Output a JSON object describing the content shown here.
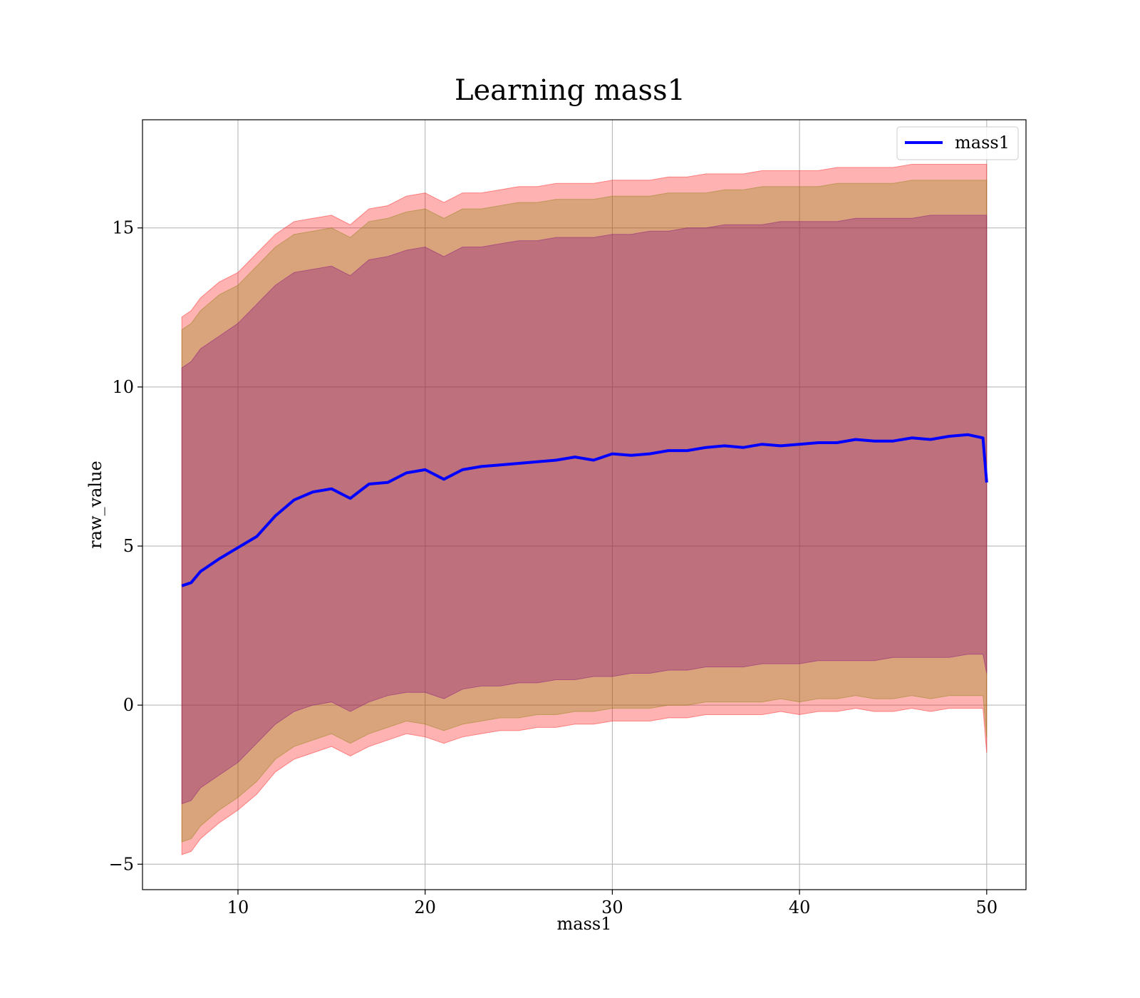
{
  "chart_data": {
    "type": "line",
    "title": "Learning mass1",
    "xlabel": "mass1",
    "ylabel": "raw_value",
    "xlim": [
      4.9,
      52.1
    ],
    "ylim": [
      -5.8,
      18.4
    ],
    "xticks": [
      10,
      20,
      30,
      40,
      50
    ],
    "xtick_labels": [
      "10",
      "20",
      "30",
      "40",
      "50"
    ],
    "yticks": [
      -5,
      0,
      5,
      10,
      15
    ],
    "ytick_labels": [
      "−5",
      "0",
      "5",
      "10",
      "15"
    ],
    "grid": true,
    "legend_position": "top-right",
    "series": [
      {
        "name": "mass1",
        "color": "#0000ff",
        "x": [
          7,
          7.5,
          8,
          9,
          10,
          11,
          12,
          13,
          14,
          15,
          16,
          17,
          18,
          19,
          20,
          21,
          22,
          23,
          24,
          25,
          26,
          27,
          28,
          29,
          30,
          31,
          32,
          33,
          34,
          35,
          36,
          37,
          38,
          39,
          40,
          41,
          42,
          43,
          44,
          45,
          46,
          47,
          48,
          49,
          49.8,
          50
        ],
        "y": [
          3.75,
          3.85,
          4.2,
          4.6,
          4.95,
          5.3,
          5.95,
          6.45,
          6.7,
          6.8,
          6.5,
          6.95,
          7.0,
          7.3,
          7.4,
          7.1,
          7.4,
          7.5,
          7.55,
          7.6,
          7.65,
          7.7,
          7.8,
          7.7,
          7.9,
          7.85,
          7.9,
          8.0,
          8.0,
          8.1,
          8.15,
          8.1,
          8.2,
          8.15,
          8.2,
          8.25,
          8.25,
          8.35,
          8.3,
          8.3,
          8.4,
          8.35,
          8.45,
          8.5,
          8.4,
          7.0
        ]
      }
    ],
    "bands": [
      {
        "color": "#ff0000",
        "opacity": 0.3,
        "x": [
          7,
          7.5,
          8,
          9,
          10,
          11,
          12,
          13,
          14,
          15,
          16,
          17,
          18,
          19,
          20,
          21,
          22,
          23,
          24,
          25,
          26,
          27,
          28,
          29,
          30,
          31,
          32,
          33,
          34,
          35,
          36,
          37,
          38,
          39,
          40,
          41,
          42,
          43,
          44,
          45,
          46,
          47,
          48,
          49,
          49.8,
          50
        ],
        "upper": [
          12.2,
          12.4,
          12.8,
          13.3,
          13.6,
          14.2,
          14.8,
          15.2,
          15.3,
          15.4,
          15.1,
          15.6,
          15.7,
          16.0,
          16.1,
          15.8,
          16.1,
          16.1,
          16.2,
          16.3,
          16.3,
          16.4,
          16.4,
          16.4,
          16.5,
          16.5,
          16.5,
          16.6,
          16.6,
          16.7,
          16.7,
          16.7,
          16.8,
          16.8,
          16.8,
          16.8,
          16.9,
          16.9,
          16.9,
          16.9,
          17.0,
          17.0,
          17.0,
          17.0,
          17.0,
          17.0
        ],
        "lower": [
          -4.7,
          -4.6,
          -4.2,
          -3.7,
          -3.3,
          -2.8,
          -2.1,
          -1.7,
          -1.5,
          -1.3,
          -1.6,
          -1.3,
          -1.1,
          -0.9,
          -1.0,
          -1.2,
          -1.0,
          -0.9,
          -0.8,
          -0.8,
          -0.7,
          -0.7,
          -0.6,
          -0.6,
          -0.5,
          -0.5,
          -0.5,
          -0.4,
          -0.4,
          -0.3,
          -0.3,
          -0.3,
          -0.3,
          -0.2,
          -0.3,
          -0.2,
          -0.2,
          -0.1,
          -0.2,
          -0.2,
          -0.1,
          -0.2,
          -0.1,
          -0.1,
          -0.1,
          -1.5
        ]
      },
      {
        "color": "#808000",
        "opacity": 0.3,
        "x": [
          7,
          7.5,
          8,
          9,
          10,
          11,
          12,
          13,
          14,
          15,
          16,
          17,
          18,
          19,
          20,
          21,
          22,
          23,
          24,
          25,
          26,
          27,
          28,
          29,
          30,
          31,
          32,
          33,
          34,
          35,
          36,
          37,
          38,
          39,
          40,
          41,
          42,
          43,
          44,
          45,
          46,
          47,
          48,
          49,
          49.8,
          50
        ],
        "upper": [
          11.8,
          12.0,
          12.4,
          12.9,
          13.2,
          13.8,
          14.4,
          14.8,
          14.9,
          15.0,
          14.7,
          15.2,
          15.3,
          15.5,
          15.6,
          15.3,
          15.6,
          15.6,
          15.7,
          15.8,
          15.8,
          15.9,
          15.9,
          15.9,
          16.0,
          16.0,
          16.0,
          16.1,
          16.1,
          16.1,
          16.2,
          16.2,
          16.3,
          16.3,
          16.3,
          16.3,
          16.4,
          16.4,
          16.4,
          16.4,
          16.5,
          16.5,
          16.5,
          16.5,
          16.5,
          16.5
        ],
        "lower": [
          -4.3,
          -4.2,
          -3.8,
          -3.3,
          -2.9,
          -2.4,
          -1.7,
          -1.3,
          -1.1,
          -0.9,
          -1.2,
          -0.9,
          -0.7,
          -0.5,
          -0.6,
          -0.8,
          -0.6,
          -0.5,
          -0.4,
          -0.4,
          -0.3,
          -0.3,
          -0.2,
          -0.2,
          -0.1,
          -0.1,
          -0.1,
          0.0,
          0.0,
          0.1,
          0.1,
          0.1,
          0.1,
          0.2,
          0.1,
          0.2,
          0.2,
          0.3,
          0.2,
          0.2,
          0.3,
          0.2,
          0.3,
          0.3,
          0.3,
          -1.0
        ]
      },
      {
        "color": "#800080",
        "opacity": 0.3,
        "x": [
          7,
          7.5,
          8,
          9,
          10,
          11,
          12,
          13,
          14,
          15,
          16,
          17,
          18,
          19,
          20,
          21,
          22,
          23,
          24,
          25,
          26,
          27,
          28,
          29,
          30,
          31,
          32,
          33,
          34,
          35,
          36,
          37,
          38,
          39,
          40,
          41,
          42,
          43,
          44,
          45,
          46,
          47,
          48,
          49,
          49.8,
          50
        ],
        "upper": [
          10.6,
          10.8,
          11.2,
          11.6,
          12.0,
          12.6,
          13.2,
          13.6,
          13.7,
          13.8,
          13.5,
          14.0,
          14.1,
          14.3,
          14.4,
          14.1,
          14.4,
          14.4,
          14.5,
          14.6,
          14.6,
          14.7,
          14.7,
          14.7,
          14.8,
          14.8,
          14.9,
          14.9,
          15.0,
          15.0,
          15.1,
          15.1,
          15.1,
          15.2,
          15.2,
          15.2,
          15.2,
          15.3,
          15.3,
          15.3,
          15.3,
          15.4,
          15.4,
          15.4,
          15.4,
          15.4
        ],
        "lower": [
          -3.1,
          -3.0,
          -2.6,
          -2.2,
          -1.8,
          -1.2,
          -0.6,
          -0.2,
          0.0,
          0.1,
          -0.2,
          0.1,
          0.3,
          0.4,
          0.4,
          0.2,
          0.5,
          0.6,
          0.6,
          0.7,
          0.7,
          0.8,
          0.8,
          0.9,
          0.9,
          1.0,
          1.0,
          1.1,
          1.1,
          1.2,
          1.2,
          1.2,
          1.3,
          1.3,
          1.3,
          1.4,
          1.4,
          1.4,
          1.4,
          1.5,
          1.5,
          1.5,
          1.5,
          1.6,
          1.6,
          1.0
        ]
      }
    ]
  }
}
